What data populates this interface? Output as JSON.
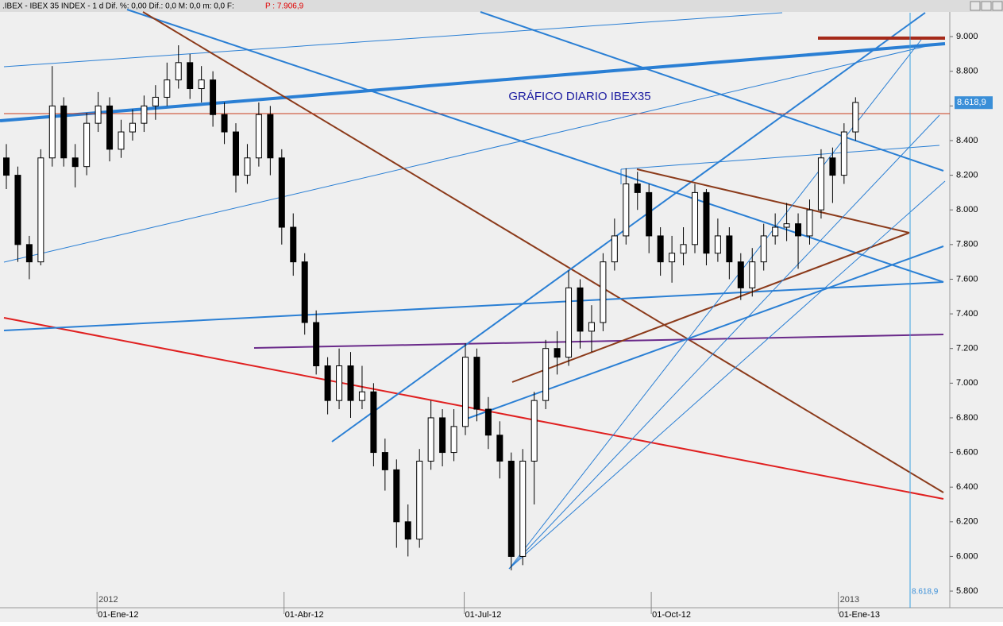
{
  "chart_data": {
    "type": "candlestick",
    "header": ".IBEX - IBEX 35 INDEX - 1 d Dif. %: 0,00 Dif.: 0,0 M: 0,0 m: 0,0 F:",
    "price_info": "P : 7.906,9",
    "title": "GRÁFICO DIARIO IBEX35",
    "last_price": {
      "value": 8618.9,
      "label": "8.618,9"
    },
    "categories": [
      null,
      null,
      null,
      null,
      null,
      null,
      null,
      null,
      null,
      null,
      null,
      null,
      null,
      null,
      null,
      null,
      null,
      null,
      null,
      null,
      null,
      null,
      null,
      null,
      null,
      null,
      null,
      null,
      null,
      null,
      null,
      null,
      null,
      null,
      null,
      null,
      null,
      null,
      null,
      null,
      null,
      null,
      null,
      null,
      null,
      null,
      null,
      null,
      null,
      null,
      null,
      null,
      null,
      null,
      null,
      null,
      null,
      null,
      null,
      null,
      null,
      null,
      null,
      null,
      null,
      null,
      null,
      null,
      null,
      null,
      null,
      null,
      null,
      null,
      null
    ],
    "open": [
      8300,
      8200,
      7800,
      7700,
      8300,
      8600,
      8300,
      8250,
      8500,
      8600,
      8350,
      8450,
      8500,
      8600,
      8650,
      8750,
      8850,
      8700,
      8750,
      8550,
      8450,
      8200,
      8300,
      8550,
      8300,
      7900,
      7700,
      7350,
      7100,
      6900,
      7100,
      6900,
      6950,
      6600,
      6500,
      6200,
      6100,
      6550,
      6800,
      6600,
      6750,
      7150,
      6850,
      6700,
      6550,
      6000,
      6550,
      6900,
      7200,
      7150,
      7550,
      7300,
      7350,
      7700,
      7850,
      8150,
      8100,
      7850,
      7700,
      7750,
      7800,
      8100,
      7750,
      7850,
      7700,
      7550,
      7700,
      7850,
      7900,
      7920,
      7850,
      8000,
      8300,
      8200,
      8450
    ],
    "high": [
      8380,
      8250,
      7850,
      8350,
      8830,
      8650,
      8380,
      8560,
      8680,
      8650,
      8520,
      8580,
      8660,
      8720,
      8850,
      8950,
      8900,
      8830,
      8800,
      8620,
      8500,
      8380,
      8620,
      8600,
      8350,
      7980,
      7750,
      7420,
      7150,
      7200,
      7180,
      7100,
      7000,
      6680,
      6560,
      6300,
      6620,
      6900,
      6850,
      6850,
      7230,
      7200,
      6920,
      6780,
      6600,
      6620,
      6950,
      7250,
      7300,
      7650,
      7600,
      7450,
      7750,
      7950,
      8240,
      8220,
      8150,
      7900,
      7850,
      7900,
      8150,
      8120,
      7950,
      7900,
      7750,
      7780,
      7920,
      7980,
      8040,
      7980,
      8060,
      8350,
      8360,
      8500,
      8650
    ],
    "low": [
      8120,
      7700,
      7600,
      7680,
      8250,
      8250,
      8130,
      8200,
      8450,
      8280,
      8300,
      8400,
      8450,
      8520,
      8600,
      8700,
      8640,
      8620,
      8480,
      8380,
      8100,
      8150,
      8250,
      8200,
      7800,
      7620,
      7280,
      7050,
      6820,
      6850,
      6800,
      6850,
      6520,
      6380,
      6050,
      6000,
      6050,
      6500,
      6520,
      6550,
      6700,
      6780,
      6620,
      6450,
      5920,
      5950,
      6300,
      6850,
      7050,
      7100,
      7200,
      7180,
      7300,
      7650,
      7800,
      8000,
      7750,
      7620,
      7580,
      7680,
      7750,
      7680,
      7700,
      7600,
      7480,
      7500,
      7650,
      7800,
      7820,
      7660,
      7800,
      7950,
      8040,
      8150,
      8400
    ],
    "close": [
      8200,
      7800,
      7700,
      8300,
      8600,
      8300,
      8250,
      8500,
      8600,
      8350,
      8450,
      8500,
      8600,
      8650,
      8750,
      8850,
      8700,
      8750,
      8550,
      8450,
      8200,
      8300,
      8550,
      8300,
      7900,
      7700,
      7350,
      7100,
      6900,
      7100,
      6900,
      6950,
      6600,
      6500,
      6200,
      6100,
      6550,
      6800,
      6600,
      6750,
      7150,
      6850,
      6700,
      6550,
      6000,
      6550,
      6900,
      7200,
      7150,
      7550,
      7300,
      7350,
      7700,
      7850,
      8150,
      8100,
      7850,
      7700,
      7750,
      7800,
      8100,
      7750,
      7850,
      7700,
      7550,
      7700,
      7850,
      7900,
      7920,
      7850,
      8000,
      8300,
      8200,
      8450,
      8620
    ],
    "up_color": "#ffffff",
    "down_color": "#000000",
    "ylim": [
      5704,
      9138
    ],
    "yticks": [
      {
        "value": 5800,
        "label": "5.800"
      },
      {
        "value": 6000,
        "label": "6.000"
      },
      {
        "value": 6200,
        "label": "6.200"
      },
      {
        "value": 6400,
        "label": "6.400"
      },
      {
        "value": 6600,
        "label": "6.600"
      },
      {
        "value": 6800,
        "label": "6.800"
      },
      {
        "value": 7000,
        "label": "7.000"
      },
      {
        "value": 7200,
        "label": "7.200"
      },
      {
        "value": 7400,
        "label": "7.400"
      },
      {
        "value": 7600,
        "label": "7.600"
      },
      {
        "value": 7800,
        "label": "7.800"
      },
      {
        "value": 8000,
        "label": "8.000"
      },
      {
        "value": 8200,
        "label": "8.200"
      },
      {
        "value": 8400,
        "label": "8.400"
      },
      {
        "value": 8600,
        "label": "8.600"
      },
      {
        "value": 8800,
        "label": "8.800"
      },
      {
        "value": 9000,
        "label": "9.000"
      }
    ],
    "xticks": [
      {
        "value": 7.9,
        "label": "01-Ene-12"
      },
      {
        "value": 24.2,
        "label": "01-Abr-12"
      },
      {
        "value": 39.9,
        "label": "01-Jul-12"
      },
      {
        "value": 56.2,
        "label": "01-Oct-12"
      },
      {
        "value": 72.5,
        "label": "01-Ene-13"
      }
    ],
    "year_labels": [
      {
        "value": 7.9,
        "label": "2012"
      },
      {
        "value": 72.5,
        "label": "2013"
      }
    ]
  }
}
